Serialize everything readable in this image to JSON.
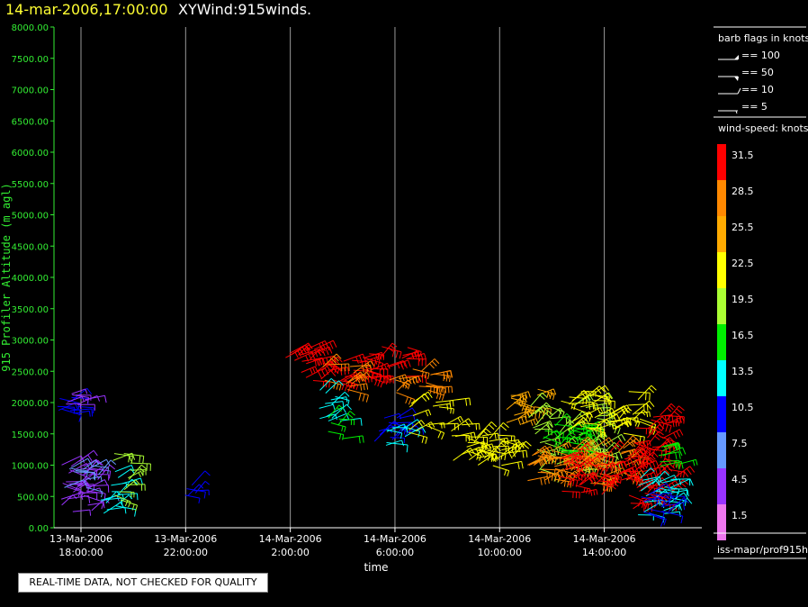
{
  "title": {
    "datetime": "14-mar-2006,17:00:00",
    "product": "XYWind:915winds."
  },
  "note": "REAL-TIME DATA, NOT CHECKED FOR QUALITY",
  "footer": "iss-mapr/prof915h",
  "legend": {
    "barb_title": "barb flags in knots",
    "barbs": [
      "== 100",
      "== 50",
      "== 10",
      "== 5"
    ],
    "speed_title": "wind-speed: knots",
    "speed_bins": [
      {
        "label": "31.5",
        "color": "#ff0000"
      },
      {
        "label": "28.5",
        "color": "#ff8800"
      },
      {
        "label": "25.5",
        "color": "#ffaa00"
      },
      {
        "label": "22.5",
        "color": "#ffff00"
      },
      {
        "label": "19.5",
        "color": "#aaff33"
      },
      {
        "label": "16.5",
        "color": "#00ee00"
      },
      {
        "label": "13.5",
        "color": "#00ffff"
      },
      {
        "label": "10.5",
        "color": "#0000ff"
      },
      {
        "label": "7.5",
        "color": "#6699ff"
      },
      {
        "label": "4.5",
        "color": "#9933ff"
      },
      {
        "label": "1.5",
        "color": "#ee77ee"
      }
    ]
  },
  "chart_data": {
    "type": "scatter",
    "title": "14-mar-2006,17:00:00 XYWind:915winds.",
    "xlabel": "time",
    "ylabel": "915 Profiler Altitude (m agl)",
    "ylim": [
      0,
      8000
    ],
    "yticks": [
      "0.00",
      "500.00",
      "1000.00",
      "1500.00",
      "2000.00",
      "2500.00",
      "3000.00",
      "3500.00",
      "4000.00",
      "4500.00",
      "5000.00",
      "5500.00",
      "6000.00",
      "6500.00",
      "7000.00",
      "7500.00",
      "8000.00"
    ],
    "xticks": [
      {
        "hours": 18,
        "line1": "13-Mar-2006",
        "line2": "18:00:00"
      },
      {
        "hours": 22,
        "line1": "13-Mar-2006",
        "line2": "22:00:00"
      },
      {
        "hours": 26,
        "line1": "14-Mar-2006",
        "line2": "2:00:00"
      },
      {
        "hours": 30,
        "line1": "14-Mar-2006",
        "line2": "6:00:00"
      },
      {
        "hours": 34,
        "line1": "14-Mar-2006",
        "line2": "10:00:00"
      },
      {
        "hours": 38,
        "line1": "14-Mar-2006",
        "line2": "14:00:00"
      }
    ],
    "grid": true,
    "clusters": [
      {
        "t0": 17.0,
        "t1": 17.9,
        "z0": 1750,
        "z1": 2150,
        "speed": 10.5,
        "n": 10
      },
      {
        "t0": 17.1,
        "t1": 18.4,
        "z0": 1950,
        "z1": 2150,
        "speed": 4.5,
        "n": 8
      },
      {
        "t0": 17.1,
        "t1": 18.8,
        "z0": 250,
        "z1": 1100,
        "speed": 4.5,
        "n": 34
      },
      {
        "t0": 17.3,
        "t1": 18.8,
        "z0": 400,
        "z1": 1000,
        "speed": 7.5,
        "n": 12
      },
      {
        "t0": 18.7,
        "t1": 19.6,
        "z0": 200,
        "z1": 950,
        "speed": 13.5,
        "n": 14
      },
      {
        "t0": 19.2,
        "t1": 19.9,
        "z0": 400,
        "z1": 1200,
        "speed": 19.5,
        "n": 12
      },
      {
        "t0": 21.9,
        "t1": 22.6,
        "z0": 450,
        "z1": 700,
        "speed": 10.5,
        "n": 6
      },
      {
        "t0": 25.8,
        "t1": 27.0,
        "z0": 2650,
        "z1": 2900,
        "speed": 31.5,
        "n": 12
      },
      {
        "t0": 26.4,
        "t1": 29.2,
        "z0": 2350,
        "z1": 2700,
        "speed": 31.5,
        "n": 24
      },
      {
        "t0": 27.0,
        "t1": 28.6,
        "z0": 2200,
        "z1": 2650,
        "speed": 28.5,
        "n": 10
      },
      {
        "t0": 28.5,
        "t1": 30.5,
        "z0": 2350,
        "z1": 2900,
        "speed": 31.5,
        "n": 16
      },
      {
        "t0": 29.6,
        "t1": 31.6,
        "z0": 2150,
        "z1": 2550,
        "speed": 28.5,
        "n": 16
      },
      {
        "t0": 27.1,
        "t1": 28.0,
        "z0": 1600,
        "z1": 2250,
        "speed": 13.5,
        "n": 12
      },
      {
        "t0": 27.4,
        "t1": 28.3,
        "z0": 1400,
        "z1": 1800,
        "speed": 16.5,
        "n": 6
      },
      {
        "t0": 29.2,
        "t1": 30.5,
        "z0": 1350,
        "z1": 1800,
        "speed": 10.5,
        "n": 14
      },
      {
        "t0": 29.5,
        "t1": 30.4,
        "z0": 1300,
        "z1": 1700,
        "speed": 13.5,
        "n": 8
      },
      {
        "t0": 30.5,
        "t1": 32.1,
        "z0": 1500,
        "z1": 2050,
        "speed": 22.5,
        "n": 14
      },
      {
        "t0": 32.1,
        "t1": 33.2,
        "z0": 1050,
        "z1": 1700,
        "speed": 22.5,
        "n": 16
      },
      {
        "t0": 33.0,
        "t1": 34.6,
        "z0": 950,
        "z1": 1500,
        "speed": 22.5,
        "n": 22
      },
      {
        "t0": 34.0,
        "t1": 35.5,
        "z0": 1600,
        "z1": 2250,
        "speed": 25.5,
        "n": 14
      },
      {
        "t0": 35.0,
        "t1": 38.0,
        "z0": 900,
        "z1": 2000,
        "speed": 19.5,
        "n": 60
      },
      {
        "t0": 35.5,
        "t1": 37.2,
        "z0": 1200,
        "z1": 1700,
        "speed": 16.5,
        "n": 24
      },
      {
        "t0": 36.2,
        "t1": 39.5,
        "z0": 1500,
        "z1": 2200,
        "speed": 22.5,
        "n": 44
      },
      {
        "t0": 35.0,
        "t1": 39.0,
        "z0": 700,
        "z1": 1300,
        "speed": 28.5,
        "n": 60
      },
      {
        "t0": 36.0,
        "t1": 39.7,
        "z0": 500,
        "z1": 1200,
        "speed": 31.5,
        "n": 50
      },
      {
        "t0": 39.0,
        "t1": 40.7,
        "z0": 300,
        "z1": 1800,
        "speed": 31.5,
        "n": 36
      },
      {
        "t0": 39.2,
        "t1": 40.6,
        "z0": 200,
        "z1": 800,
        "speed": 13.5,
        "n": 26
      },
      {
        "t0": 39.4,
        "t1": 40.5,
        "z0": 200,
        "z1": 600,
        "speed": 10.5,
        "n": 14
      },
      {
        "t0": 40.0,
        "t1": 41.1,
        "z0": 800,
        "z1": 1300,
        "speed": 16.5,
        "n": 8
      }
    ]
  }
}
